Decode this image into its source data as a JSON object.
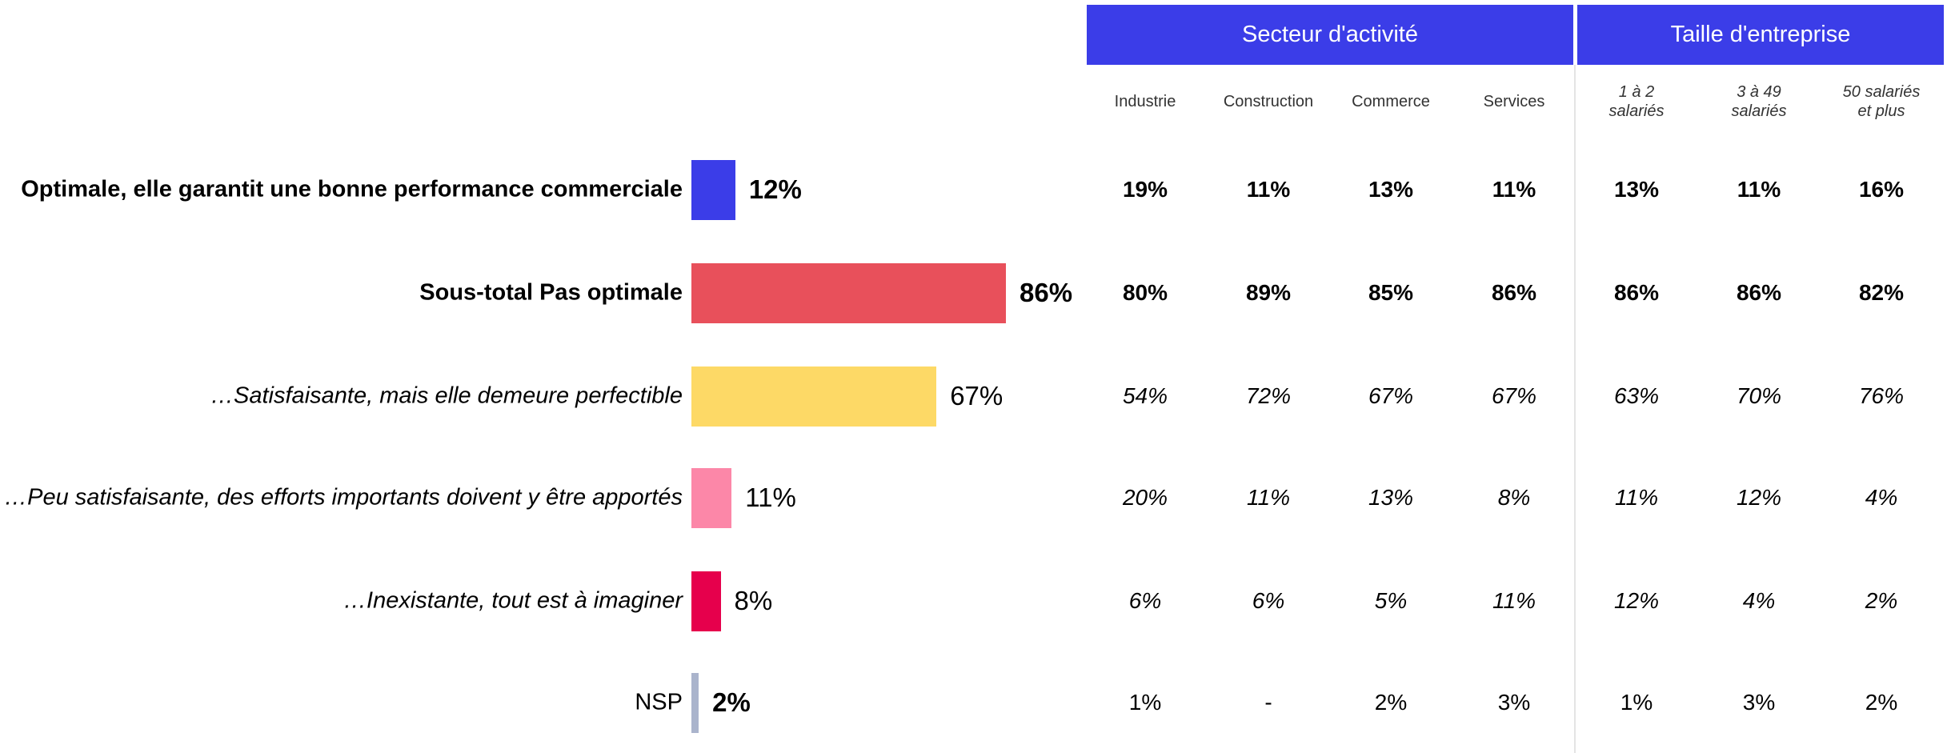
{
  "chart_data": {
    "type": "bar",
    "orientation": "horizontal",
    "categories": [
      "Optimale, elle garantit une bonne performance commerciale",
      "Sous-total Pas optimale",
      "…Satisfaisante, mais elle demeure perfectible",
      "…Peu satisfaisante, des efforts importants doivent y être apportés",
      "…Inexistante, tout est à imaginer",
      "NSP"
    ],
    "values": [
      12,
      86,
      67,
      11,
      8,
      2
    ],
    "value_labels": [
      "12%",
      "86%",
      "67%",
      "11%",
      "8%",
      "2%"
    ],
    "colors": [
      "#3b3de8",
      "#e8505b",
      "#fdd966",
      "#fc87a8",
      "#e6004c",
      "#aab4cc"
    ]
  },
  "table": {
    "groups": [
      {
        "title": "Secteur d'activité",
        "columns": [
          "Industrie",
          "Construction",
          "Commerce",
          "Services"
        ]
      },
      {
        "title": "Taille d'entreprise",
        "columns": [
          "1 à 2 salariés",
          "3 à 49 salariés",
          "50 salariés et plus"
        ]
      }
    ],
    "rows": [
      [
        "19%",
        "11%",
        "13%",
        "11%",
        "13%",
        "11%",
        "16%"
      ],
      [
        "80%",
        "89%",
        "85%",
        "86%",
        "86%",
        "86%",
        "82%"
      ],
      [
        "54%",
        "72%",
        "67%",
        "67%",
        "63%",
        "70%",
        "76%"
      ],
      [
        "20%",
        "11%",
        "13%",
        "8%",
        "11%",
        "12%",
        "4%"
      ],
      [
        "6%",
        "6%",
        "5%",
        "11%",
        "12%",
        "4%",
        "2%"
      ],
      [
        "1%",
        "-",
        "2%",
        "3%",
        "1%",
        "3%",
        "2%"
      ]
    ]
  }
}
